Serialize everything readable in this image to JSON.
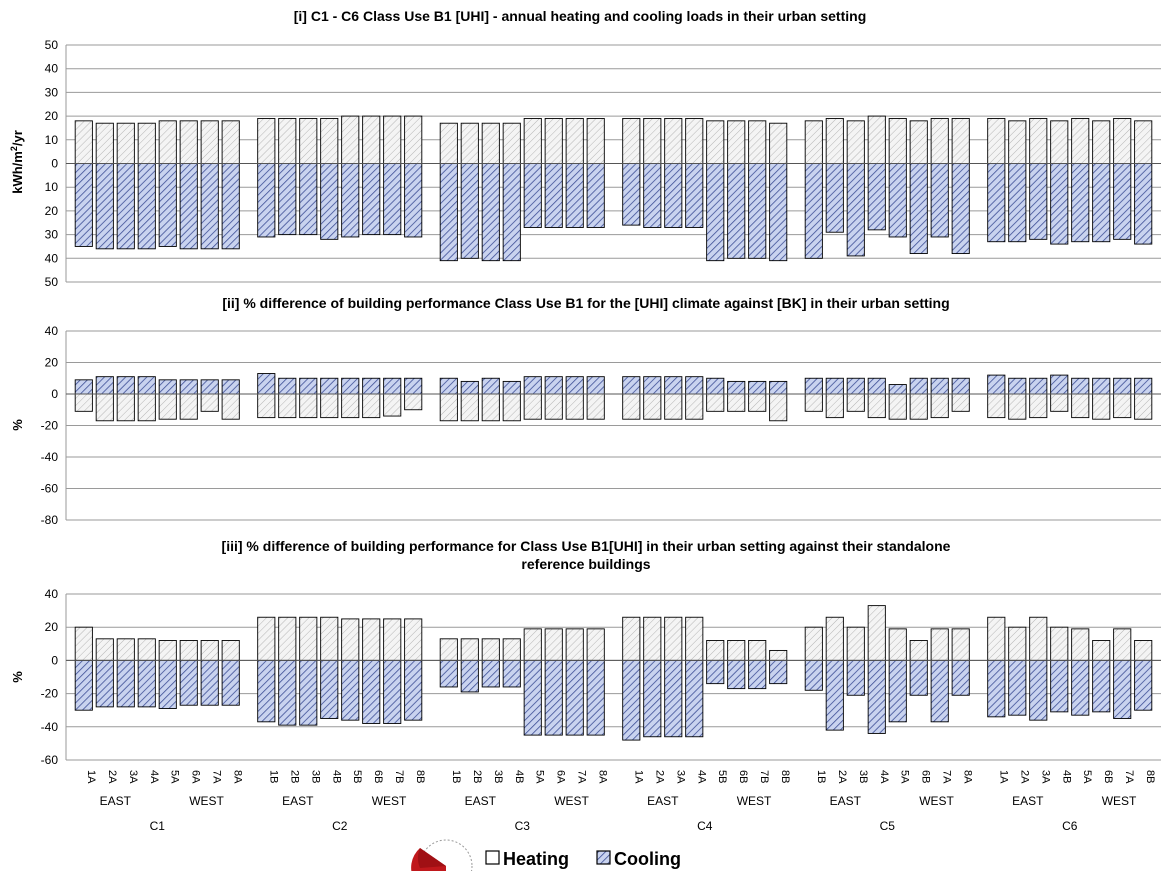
{
  "colors": {
    "heating": "#f2f2f2",
    "cooling": "#c9d3ef",
    "cooling_hatch": "#3d4f96",
    "heating_hatch": "#b5b5b5",
    "grid": "#9a9a9a",
    "stamp": "#c0181c"
  },
  "categories": [
    "1A",
    "2A",
    "3A",
    "4A",
    "5A",
    "6A",
    "7A",
    "8A",
    "1B",
    "2B",
    "3B",
    "4B",
    "5B",
    "6B",
    "7B",
    "8B",
    "1B",
    "2B",
    "3B",
    "4B",
    "5A",
    "6A",
    "7A",
    "8A",
    "1A",
    "2A",
    "3A",
    "4A",
    "5B",
    "6B",
    "7B",
    "8B",
    "1B",
    "2A",
    "3B",
    "4A",
    "5A",
    "6B",
    "7A",
    "8A",
    "1A",
    "2A",
    "3A",
    "4B",
    "5A",
    "6B",
    "7A",
    "8B"
  ],
  "groups": [
    "C1",
    "C2",
    "C3",
    "C4",
    "C5",
    "C6"
  ],
  "subgroups": [
    "EAST",
    "WEST"
  ],
  "legend": {
    "heating": "Heating",
    "cooling": "Cooling"
  },
  "chart_data": [
    {
      "type": "bar",
      "title": "[i] C1 - C6 Class Use B1 [UHI] - annual heating and cooling loads in their urban setting",
      "ylabel_main": "kWh/m",
      "ylabel_sup": "2",
      "ylabel_tail": "/yr",
      "ylim": [
        -50,
        50
      ],
      "yticks": [
        50,
        40,
        30,
        20,
        10,
        0,
        -10,
        -20,
        -30,
        -40,
        -50
      ],
      "ytick_labels": [
        "50",
        "40",
        "30",
        "20",
        "10",
        "0",
        "10",
        "20",
        "30",
        "40",
        "50"
      ],
      "series": [
        {
          "name": "Heating",
          "values": [
            18,
            17,
            17,
            17,
            18,
            18,
            18,
            18,
            19,
            19,
            19,
            19,
            20,
            20,
            20,
            20,
            17,
            17,
            17,
            17,
            19,
            19,
            19,
            19,
            19,
            19,
            19,
            19,
            18,
            18,
            18,
            17,
            18,
            19,
            18,
            20,
            19,
            18,
            19,
            19,
            19,
            18,
            19,
            18,
            19,
            18,
            19,
            18
          ]
        },
        {
          "name": "Cooling",
          "values": [
            -35,
            -36,
            -36,
            -36,
            -35,
            -36,
            -36,
            -36,
            -31,
            -30,
            -30,
            -32,
            -31,
            -30,
            -30,
            -31,
            -41,
            -40,
            -41,
            -41,
            -27,
            -27,
            -27,
            -27,
            -26,
            -27,
            -27,
            -27,
            -41,
            -40,
            -40,
            -41,
            -40,
            -29,
            -39,
            -28,
            -31,
            -38,
            -31,
            -38,
            -33,
            -33,
            -32,
            -34,
            -33,
            -33,
            -32,
            -34
          ]
        }
      ]
    },
    {
      "type": "bar",
      "title": "[ii] % difference of building performance Class Use B1 for the [UHI] climate against [BK] in their urban setting",
      "ylabel_main": "%",
      "ylim": [
        -80,
        40
      ],
      "yticks": [
        40,
        20,
        0,
        -20,
        -40,
        -60,
        -80
      ],
      "ytick_labels": [
        "40",
        "20",
        "0",
        "-20",
        "-40",
        "-60",
        "-80"
      ],
      "series": [
        {
          "name": "Cooling",
          "values": [
            9,
            11,
            11,
            11,
            9,
            9,
            9,
            9,
            13,
            10,
            10,
            10,
            10,
            10,
            10,
            10,
            10,
            8,
            10,
            8,
            11,
            11,
            11,
            11,
            11,
            11,
            11,
            11,
            10,
            8,
            8,
            8,
            10,
            10,
            10,
            10,
            6,
            10,
            10,
            10,
            12,
            10,
            10,
            12,
            10,
            10,
            10,
            10
          ]
        },
        {
          "name": "Heating",
          "values": [
            -11,
            -17,
            -17,
            -17,
            -16,
            -16,
            -11,
            -16,
            -15,
            -15,
            -15,
            -15,
            -15,
            -15,
            -14,
            -10,
            -17,
            -17,
            -17,
            -17,
            -16,
            -16,
            -16,
            -16,
            -16,
            -16,
            -16,
            -16,
            -11,
            -11,
            -11,
            -17,
            -11,
            -15,
            -11,
            -15,
            -16,
            -16,
            -15,
            -11,
            -15,
            -16,
            -15,
            -11,
            -15,
            -16,
            -15,
            -16
          ]
        }
      ]
    },
    {
      "type": "bar",
      "title": "[iii] % difference of  building performance for Class Use B1[UHI] in their urban setting against their standalone",
      "title2": "reference buildings",
      "ylabel_main": "%",
      "ylim": [
        -60,
        40
      ],
      "yticks": [
        40,
        20,
        0,
        -20,
        -40,
        -60
      ],
      "ytick_labels": [
        "40",
        "20",
        "0",
        "-20",
        "-40",
        "-60"
      ],
      "series": [
        {
          "name": "Heating",
          "values": [
            20,
            13,
            13,
            13,
            12,
            12,
            12,
            12,
            26,
            26,
            26,
            26,
            25,
            25,
            25,
            25,
            13,
            13,
            13,
            13,
            19,
            19,
            19,
            19,
            26,
            26,
            26,
            26,
            12,
            12,
            12,
            6,
            20,
            26,
            20,
            33,
            19,
            12,
            19,
            19,
            26,
            20,
            26,
            20,
            19,
            12,
            19,
            12
          ]
        },
        {
          "name": "Cooling",
          "values": [
            -30,
            -28,
            -28,
            -28,
            -29,
            -27,
            -27,
            -27,
            -37,
            -39,
            -39,
            -35,
            -36,
            -38,
            -38,
            -36,
            -16,
            -19,
            -16,
            -16,
            -45,
            -45,
            -45,
            -45,
            -48,
            -46,
            -46,
            -46,
            -14,
            -17,
            -17,
            -14,
            -18,
            -42,
            -21,
            -44,
            -37,
            -21,
            -37,
            -21,
            -34,
            -33,
            -36,
            -31,
            -33,
            -31,
            -35,
            -30
          ]
        }
      ]
    }
  ]
}
